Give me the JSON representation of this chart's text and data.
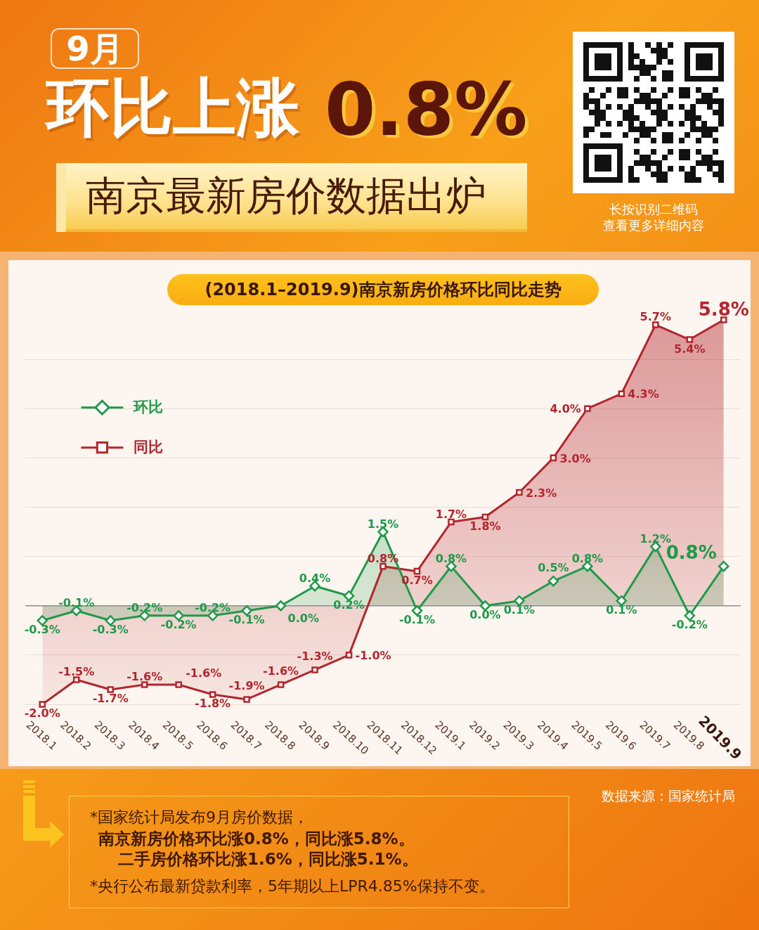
{
  "chart_data": {
    "type": "area",
    "title": "(2018.1–2019.9)南京新房价格环比同比走势",
    "subtitle": "南京最新房价数据出炉",
    "categories": [
      "2018.1",
      "2018.2",
      "2018.3",
      "2018.4",
      "2018.5",
      "2018.6",
      "2018.7",
      "2018.8",
      "2018.9",
      "2018.10",
      "2018.11",
      "2018.12",
      "2019.1",
      "2019.2",
      "2019.3",
      "2019.4",
      "2019.5",
      "2019.6",
      "2019.7",
      "2019.8",
      "2019.9"
    ],
    "series": [
      {
        "name": "环比",
        "color": "#21994b",
        "marker": "diamond",
        "values": [
          -0.3,
          -0.1,
          -0.3,
          -0.2,
          -0.2,
          -0.2,
          -0.1,
          0.0,
          0.4,
          0.2,
          1.5,
          -0.1,
          0.8,
          0.0,
          0.1,
          0.5,
          0.8,
          0.1,
          1.2,
          -0.2,
          0.8
        ],
        "value_labels": [
          "-0.3%",
          "-0.1%",
          "-0.3%",
          "-0.2%",
          "-0.2%",
          "-0.2%",
          "-0.1%",
          "0.0%",
          "0.4%",
          "0.2%",
          "1.5%",
          "-0.1%",
          "0.8%",
          "0.0%",
          "0.1%",
          "0.5%",
          "0.8%",
          "0.1%",
          "1.2%",
          "-0.2%",
          "0.8%"
        ]
      },
      {
        "name": "同比",
        "color": "#b3262e",
        "marker": "square",
        "values": [
          -2.0,
          -1.5,
          -1.7,
          -1.6,
          -1.6,
          -1.8,
          -1.9,
          -1.6,
          -1.3,
          -1.0,
          0.8,
          0.7,
          1.7,
          1.8,
          2.3,
          3.0,
          4.0,
          4.3,
          5.7,
          5.4,
          5.8
        ],
        "value_labels": [
          "-2.0%",
          "-1.5%",
          "-1.7%",
          "-1.6%",
          "-1.6%",
          "-1.8%",
          "-1.9%",
          "-1.6%",
          "-1.3%",
          "-1.0%",
          "0.8%",
          "0.7%",
          "1.7%",
          "1.8%",
          "2.3%",
          "3.0%",
          "4.0%",
          "4.3%",
          "5.7%",
          "5.4%",
          "5.8%"
        ]
      }
    ],
    "yticks": [
      {
        "value": -2,
        "label": null
      },
      {
        "value": -1,
        "label": null
      },
      {
        "value": 0,
        "label": null
      },
      {
        "value": 1,
        "label": null
      },
      {
        "value": 2,
        "label": null
      },
      {
        "value": 3,
        "label": null
      },
      {
        "value": 4,
        "label": null
      },
      {
        "value": 5,
        "label": null
      }
    ],
    "grid": "y",
    "tick_labels": "x",
    "legend": "top left",
    "ref_lines": [
      {
        "axis": "y",
        "value": 0,
        "color": "#8c8c8c"
      }
    ],
    "annotations": [
      "9月",
      "环比上涨",
      "0.8%",
      "长按识别二维码",
      "查看更多详细内容",
      "*国家统计局发布9月房价数据，",
      "南京新房价格环比涨0.8%，同比涨5.8%。",
      "二手房价格环比涨1.6%，同比涨5.1%。",
      "*央行公布最新贷款利率，5年期以上LPR4.85%保持不变。",
      "数据来源：国家统计局"
    ]
  }
}
